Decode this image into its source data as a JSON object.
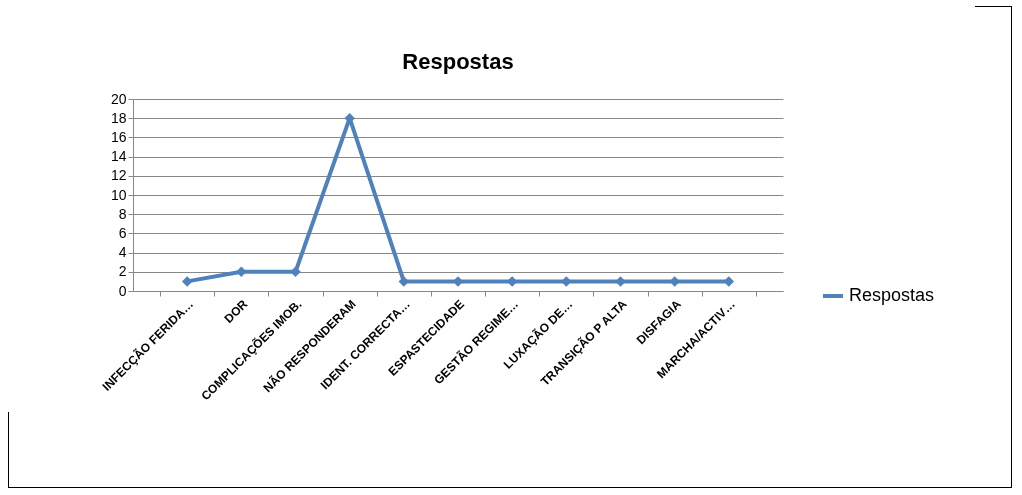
{
  "chart_data": {
    "type": "line",
    "title": "Respostas",
    "categories": [
      "INFECÇÃO FERIDA…",
      "DOR",
      "COMPLICAÇÕES IMOB.",
      "NÃO RESPONDERAM",
      "IDENT. CORRECTA…",
      "ESPASTECIDADE",
      "GESTÃO REGIME…",
      "LUXAÇÃO DE…",
      "TRANSIÇÃO P ALTA",
      "DISFAGIA",
      "MARCHA/ACTIV…"
    ],
    "series": [
      {
        "name": "Respostas",
        "color": "#4f81bd",
        "values": [
          1,
          2,
          2,
          18,
          1,
          1,
          1,
          1,
          1,
          1,
          1
        ]
      }
    ],
    "ylim": [
      0,
      20
    ],
    "yticks": [
      0,
      2,
      4,
      6,
      8,
      10,
      12,
      14,
      16,
      18,
      20
    ],
    "grid": "y",
    "legend": "right",
    "marker": "diamond",
    "line_style": "solid"
  }
}
